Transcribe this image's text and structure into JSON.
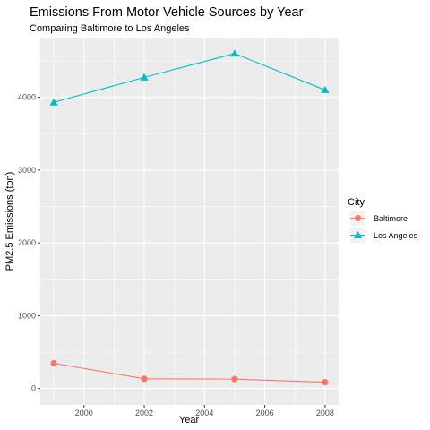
{
  "chart_data": {
    "type": "line",
    "title": "Emissions From Motor Vehicle Sources by Year",
    "subtitle": "Comparing Baltimore to Los Angeles",
    "xlabel": "Year",
    "ylabel": "PM2.5 Emissions (ton)",
    "x": [
      1999,
      2002,
      2005,
      2008
    ],
    "x_ticks": [
      2000,
      2002,
      2004,
      2006,
      2008
    ],
    "x_tick_labels": [
      "2000",
      "2002",
      "2004",
      "2006",
      "2008"
    ],
    "y_ticks": [
      0,
      1000,
      2000,
      3000,
      4000
    ],
    "y_tick_labels": [
      "0",
      "1000",
      "2000",
      "3000",
      "4000"
    ],
    "xlim": [
      1998.55,
      2008.45
    ],
    "ylim": [
      -225,
      4820
    ],
    "grid": true,
    "legend": {
      "title": "City",
      "placement": "right"
    },
    "series": [
      {
        "name": "Baltimore",
        "values": [
          347,
          134,
          130,
          88
        ],
        "color": "#F8766D",
        "marker": "circle"
      },
      {
        "name": "Los Angeles",
        "values": [
          3931,
          4274,
          4601,
          4101
        ],
        "color": "#00BFC4",
        "marker": "triangle"
      }
    ],
    "panel_background": "#EBEBEB",
    "gridline_color": "#FFFFFF"
  }
}
